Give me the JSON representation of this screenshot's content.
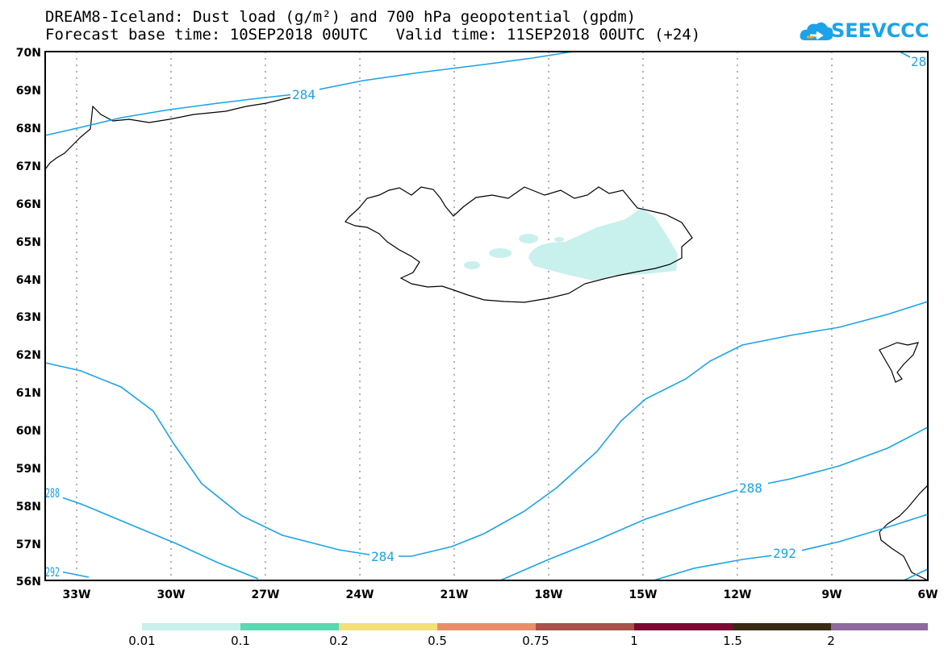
{
  "title_line1": "DREAM8-Iceland: Dust load (g/m²) and 700 hPa geopotential (gpdm)",
  "title_line2": "Forecast base time: 10SEP2018 00UTC   Valid time: 11SEP2018 00UTC (+24)",
  "logo": {
    "text": "SEEVCCC",
    "icon": "cloud-icon",
    "color": "#1aa3e8"
  },
  "map": {
    "lat_range": [
      56,
      70
    ],
    "lon_range": [
      -34.5,
      -6
    ],
    "lat_labels": [
      "70N",
      "69N",
      "68N",
      "67N",
      "66N",
      "65N",
      "64N",
      "63N",
      "62N",
      "61N",
      "60N",
      "59N",
      "58N",
      "57N",
      "56N"
    ],
    "lon_labels": [
      "33W",
      "30W",
      "27W",
      "24W",
      "21W",
      "18W",
      "15W",
      "12W",
      "9W",
      "6W"
    ],
    "contour_color": "#1aa3e8",
    "contour_labels": [
      "284",
      "284",
      "288",
      "288",
      "292",
      "292",
      "28"
    ],
    "dust_color": "#c8f0ec"
  },
  "legend": {
    "colors": [
      "#c8f0ec",
      "#5ad8b0",
      "#f2e07a",
      "#e88f6a",
      "#a8524a",
      "#7a0a32",
      "#3a2a14",
      "#8e6aa0"
    ],
    "labels": [
      "0.01",
      "0.1",
      "0.2",
      "0.5",
      "0.75",
      "1",
      "1.5",
      "2"
    ]
  }
}
